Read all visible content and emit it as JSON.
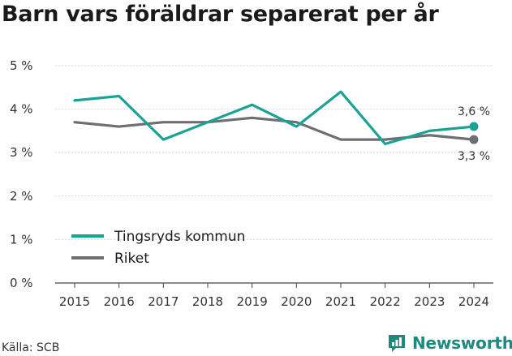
{
  "title": "Barn vars föräldrar separerat per år",
  "source": "Källa: SCB",
  "brand": {
    "name": "Newsworthy",
    "icon": "newsworthy-logo-icon",
    "color": "#1c8a7e"
  },
  "chart_data": {
    "type": "line",
    "x": [
      "2015",
      "2016",
      "2017",
      "2018",
      "2019",
      "2020",
      "2021",
      "2022",
      "2023",
      "2024"
    ],
    "y_ticks": [
      "0 %",
      "1 %",
      "2 %",
      "3 %",
      "4 %",
      "5 %"
    ],
    "ylim": [
      0,
      5
    ],
    "unit": "%",
    "grid": "horizontal",
    "legend": "bottom-left",
    "series": [
      {
        "name": "Tingsryds kommun",
        "color": "#1aa394",
        "values": [
          4.2,
          4.3,
          3.3,
          3.7,
          4.1,
          3.6,
          4.4,
          3.2,
          3.5,
          3.6
        ],
        "end_label": "3,6 %"
      },
      {
        "name": "Riket",
        "color": "#6e6e73",
        "values": [
          3.7,
          3.6,
          3.7,
          3.7,
          3.8,
          3.7,
          3.3,
          3.3,
          3.4,
          3.3
        ],
        "end_label": "3,3 %"
      }
    ]
  }
}
